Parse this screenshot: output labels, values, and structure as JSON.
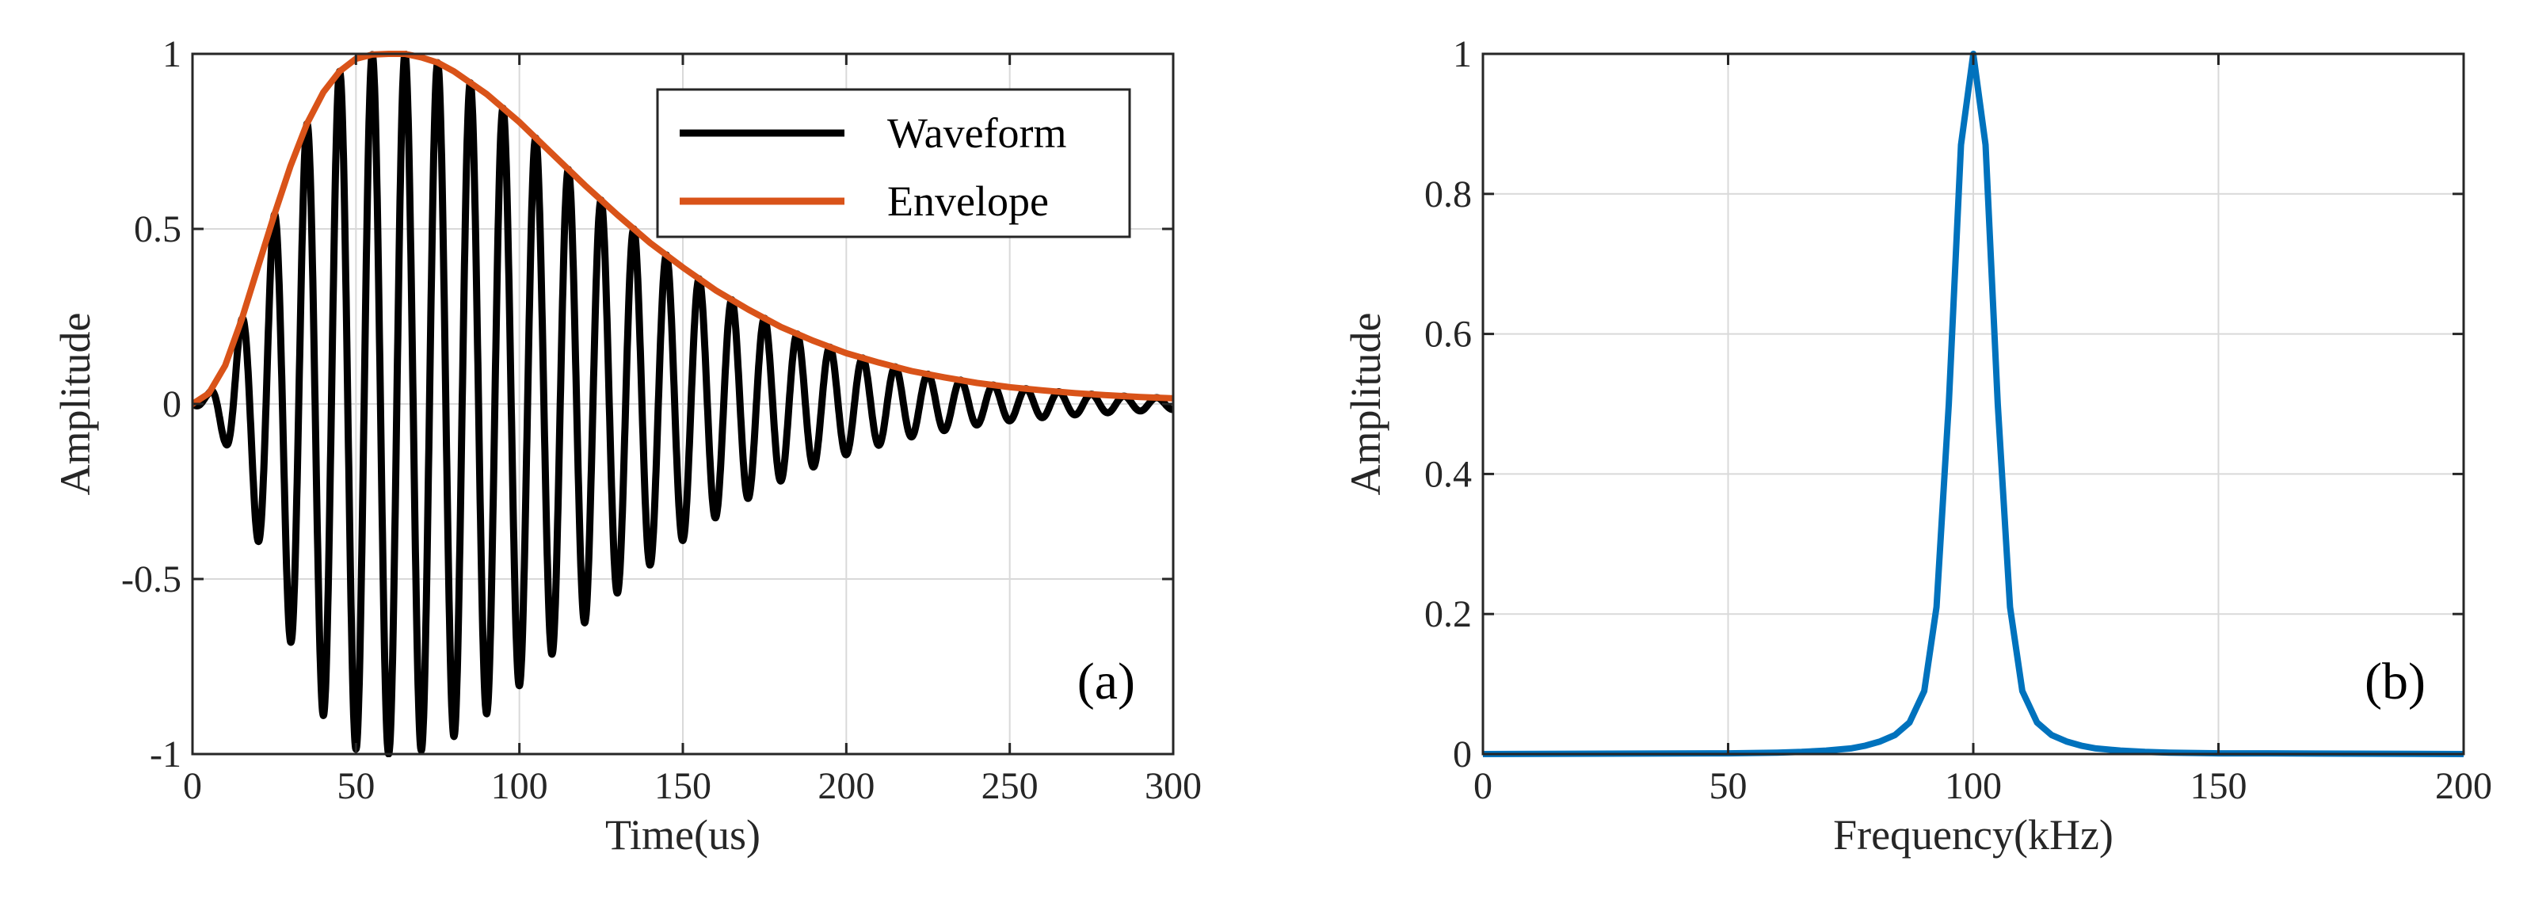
{
  "chart_data": [
    {
      "type": "line",
      "panel_tag": "(a)",
      "xlabel": "Time(us)",
      "ylabel": "Amplitude",
      "xlim": [
        0,
        300
      ],
      "ylim": [
        -1,
        1
      ],
      "xticks": [
        0,
        50,
        100,
        150,
        200,
        250,
        300
      ],
      "xtick_labels": [
        "0",
        "50",
        "100",
        "150",
        "200",
        "250",
        "300"
      ],
      "yticks": [
        -1,
        -0.5,
        0,
        0.5,
        1
      ],
      "ytick_labels": [
        "-1",
        "-0.5",
        "0",
        "0.5",
        "1"
      ],
      "grid": true,
      "legend_position": "top-right",
      "series": [
        {
          "name": "Waveform",
          "color": "#000000",
          "description_generator": {
            "kind": "modulated_sine",
            "carrier_frequency_khz": 100,
            "envelope_peak_time_us": 65,
            "envelope_peak_amplitude": 1
          }
        },
        {
          "name": "Envelope",
          "color": "#d95319",
          "x": [
            0,
            5,
            10,
            15,
            20,
            25,
            30,
            35,
            40,
            45,
            50,
            55,
            60,
            65,
            70,
            75,
            80,
            90,
            100,
            110,
            120,
            130,
            140,
            150,
            160,
            170,
            180,
            190,
            200,
            210,
            220,
            230,
            240,
            250,
            260,
            270,
            280,
            290,
            300
          ],
          "y": [
            0.0,
            0.03,
            0.11,
            0.24,
            0.39,
            0.54,
            0.68,
            0.8,
            0.89,
            0.95,
            0.986,
            0.998,
            1.0,
            1.0,
            0.99,
            0.975,
            0.95,
            0.885,
            0.805,
            0.715,
            0.625,
            0.54,
            0.46,
            0.39,
            0.325,
            0.27,
            0.22,
            0.18,
            0.145,
            0.118,
            0.094,
            0.076,
            0.06,
            0.048,
            0.039,
            0.031,
            0.025,
            0.02,
            0.016
          ]
        }
      ]
    },
    {
      "type": "line",
      "panel_tag": "(b)",
      "xlabel": "Frequency(kHz)",
      "ylabel": "Amplitude",
      "xlim": [
        0,
        200
      ],
      "ylim": [
        0,
        1
      ],
      "xticks": [
        0,
        50,
        100,
        150,
        200
      ],
      "xtick_labels": [
        "0",
        "50",
        "100",
        "150",
        "200"
      ],
      "yticks": [
        0,
        0.2,
        0.4,
        0.6,
        0.8,
        1
      ],
      "ytick_labels": [
        "0",
        "0.2",
        "0.4",
        "0.6",
        "0.8",
        "1"
      ],
      "grid": true,
      "series": [
        {
          "color": "#0072bd",
          "x": [
            0,
            50,
            60,
            65,
            70,
            75,
            78,
            81,
            84,
            87,
            90,
            92.5,
            95,
            97.5,
            100,
            102.5,
            105,
            107.5,
            110,
            113,
            116,
            119,
            122,
            125,
            130,
            135,
            140,
            150,
            160,
            200
          ],
          "y": [
            0,
            0.001,
            0.002,
            0.003,
            0.005,
            0.008,
            0.012,
            0.018,
            0.027,
            0.045,
            0.09,
            0.21,
            0.5,
            0.87,
            1.0,
            0.87,
            0.5,
            0.21,
            0.09,
            0.045,
            0.027,
            0.018,
            0.012,
            0.008,
            0.005,
            0.003,
            0.002,
            0.001,
            0.001,
            0
          ]
        }
      ]
    }
  ]
}
